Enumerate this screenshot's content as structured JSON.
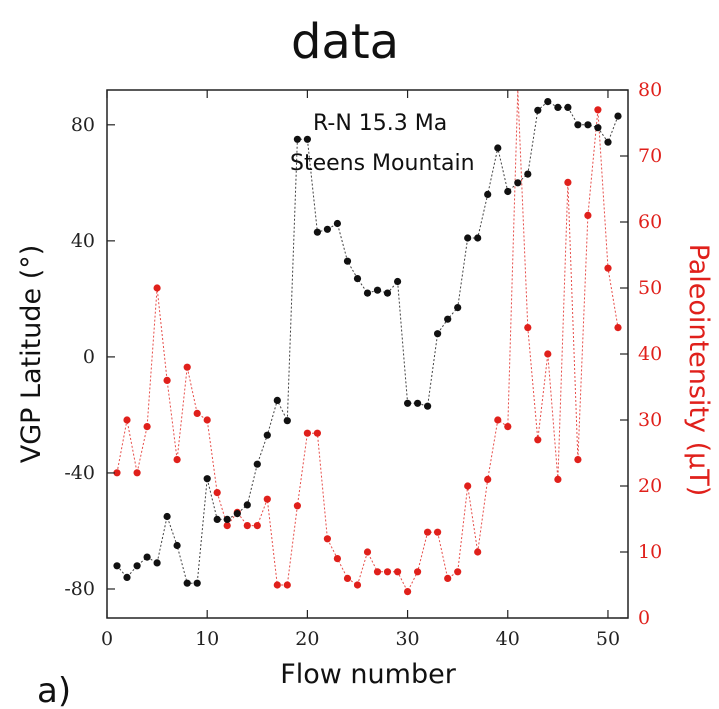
{
  "title": "data",
  "panel_label": "a)",
  "annotation": [
    "R-N 15.3 Ma",
    "Steens Mountain"
  ],
  "colors": {
    "vgp": "#111111",
    "paleo": "#e0201b",
    "axis": "#222222"
  },
  "chart_data": {
    "type": "scatter",
    "xlabel": "Flow number",
    "xlim": [
      0,
      52
    ],
    "xticks": [
      0,
      10,
      20,
      30,
      40,
      50
    ],
    "y_left": {
      "label": "VGP Latitude (°)",
      "lim": [
        -90,
        92
      ],
      "ticks": [
        -80,
        -40,
        0,
        40,
        80
      ]
    },
    "y_right": {
      "label": "Paleointensity (μT)",
      "lim": [
        0,
        80
      ],
      "ticks": [
        0,
        10,
        20,
        30,
        40,
        50,
        60,
        70,
        80
      ]
    },
    "grid": false,
    "series": [
      {
        "axis": "left",
        "color": "#111111",
        "x": [
          1,
          2,
          3,
          4,
          5,
          6,
          7,
          8,
          9,
          10,
          11,
          12,
          13,
          14,
          15,
          16,
          17,
          18,
          19,
          20,
          21,
          22,
          23,
          24,
          25,
          26,
          27,
          28,
          29,
          30,
          31,
          32,
          33,
          34,
          35,
          36,
          37,
          38,
          39,
          40,
          41,
          42,
          43,
          44,
          45,
          46,
          47,
          48,
          49,
          50,
          51
        ],
        "y": [
          -72,
          -76,
          -72,
          -69,
          -71,
          -55,
          -65,
          -78,
          -78,
          -42,
          -56,
          -56,
          -54,
          -51,
          -37,
          -27,
          -15,
          -22,
          75,
          75,
          43,
          44,
          46,
          33,
          27,
          22,
          23,
          22,
          26,
          -16,
          -16,
          -17,
          8,
          13,
          17,
          41,
          41,
          56,
          72,
          57,
          60,
          63,
          85,
          88,
          86,
          86,
          80,
          80,
          79,
          74,
          83
        ]
      },
      {
        "axis": "right",
        "color": "#e0201b",
        "x": [
          1,
          2,
          3,
          4,
          5,
          6,
          7,
          8,
          9,
          10,
          11,
          12,
          13,
          14,
          15,
          16,
          17,
          18,
          19,
          20,
          21,
          22,
          23,
          24,
          25,
          26,
          27,
          28,
          29,
          30,
          31,
          32,
          33,
          34,
          35,
          36,
          37,
          38,
          39,
          40,
          41,
          42,
          43,
          44,
          45,
          46,
          47,
          48,
          49,
          50,
          51
        ],
        "y": [
          22,
          30,
          22,
          29,
          50,
          36,
          24,
          38,
          31,
          30,
          19,
          14,
          16,
          14,
          14,
          18,
          5,
          5,
          17,
          28,
          28,
          12,
          9,
          6,
          5,
          10,
          7,
          7,
          7,
          4,
          7,
          13,
          13,
          6,
          7,
          20,
          10,
          21,
          30,
          29,
          83,
          44,
          27,
          40,
          21,
          66,
          24,
          61,
          77,
          53,
          44
        ]
      }
    ]
  }
}
